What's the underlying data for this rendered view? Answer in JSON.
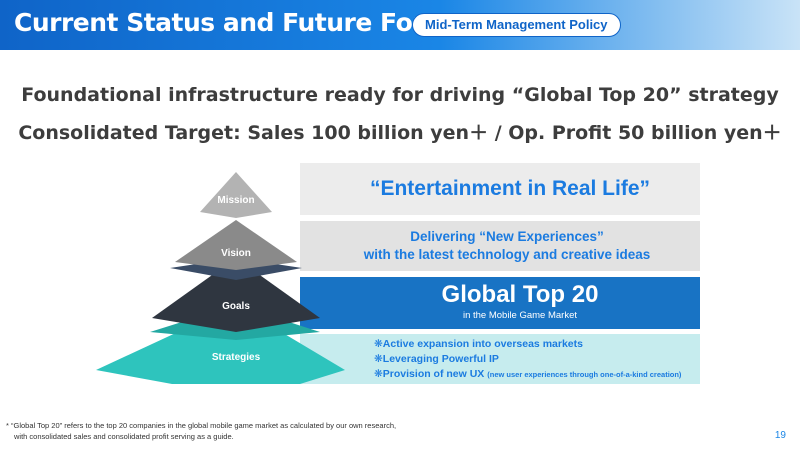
{
  "header": {
    "title": "Current Status and Future Forecast",
    "tag": "Mid-Term Management Policy"
  },
  "headline": {
    "line1": "Foundational infrastructure ready for driving “Global Top 20” strategy",
    "line2": "Consolidated Target: Sales 100 billion yen＋ / Op. Profit 50 billion yen＋"
  },
  "pyramid": {
    "levels": [
      {
        "label": "Mission"
      },
      {
        "label": "Vision"
      },
      {
        "label": "Goals"
      },
      {
        "label": "Strategies"
      }
    ]
  },
  "bands": {
    "mission": {
      "text": "“Entertainment in Real Life”"
    },
    "vision": {
      "line1": "Delivering “New Experiences”",
      "line2": "with the latest technology and creative ideas"
    },
    "goals": {
      "main": "Global Top 20",
      "sub": "in the Mobile Game Market"
    },
    "strategies": {
      "items": [
        "❋Active expansion into overseas markets",
        "❋Leveraging Powerful IP",
        "❋Provision of new UX"
      ],
      "note": "(new user experiences through one-of-a-kind creation)"
    }
  },
  "footer": {
    "note_line1": "* “Global Top 20” refers to the top 20 companies in the global mobile game market as calculated by our own research,",
    "note_line2": "with consolidated sales and consolidated profit serving as a guide.",
    "page": "19"
  },
  "colors": {
    "header_blue": "#0f64c8",
    "accent_blue": "#1b7be0",
    "goals_band": "#1873c4",
    "strategies_band": "#c6ecee",
    "pyramid_mission": "#b3b3b3",
    "pyramid_vision": "#8a8a8a",
    "pyramid_goals": "#2f3640",
    "pyramid_strategies": "#2ec4bd"
  }
}
